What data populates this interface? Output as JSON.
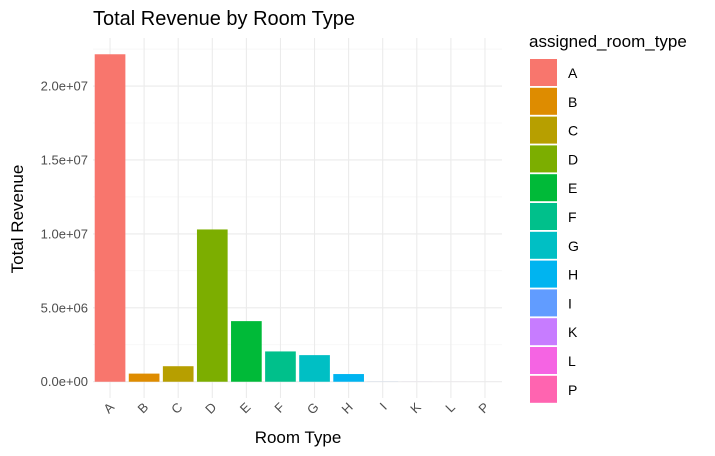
{
  "chart_data": {
    "type": "bar",
    "title": "Total Revenue by Room Type",
    "xlabel": "Room Type",
    "ylabel": "Total Revenue",
    "categories": [
      "A",
      "B",
      "C",
      "D",
      "E",
      "F",
      "G",
      "H",
      "I",
      "K",
      "L",
      "P"
    ],
    "values": [
      22150000,
      550000,
      1050000,
      10300000,
      4100000,
      2050000,
      1800000,
      520000,
      5000,
      2000,
      1000,
      500
    ],
    "colors": [
      "#F8766D",
      "#DE8C00",
      "#B79F00",
      "#7CAE00",
      "#00BA38",
      "#00C08B",
      "#00BFC4",
      "#00B4F0",
      "#619CFF",
      "#C77CFF",
      "#F564E3",
      "#FF64B0"
    ],
    "ylim": [
      -1100000,
      23250000
    ],
    "yticks": [
      0,
      5000000,
      10000000,
      15000000,
      20000000
    ],
    "ytick_labels": [
      "0.0e+00",
      "5.0e+06",
      "1.0e+07",
      "1.5e+07",
      "2.0e+07"
    ],
    "grid": true,
    "legend": {
      "title": "assigned_room_type",
      "position": "right",
      "entries": [
        "A",
        "B",
        "C",
        "D",
        "E",
        "F",
        "G",
        "H",
        "I",
        "K",
        "L",
        "P"
      ]
    }
  }
}
